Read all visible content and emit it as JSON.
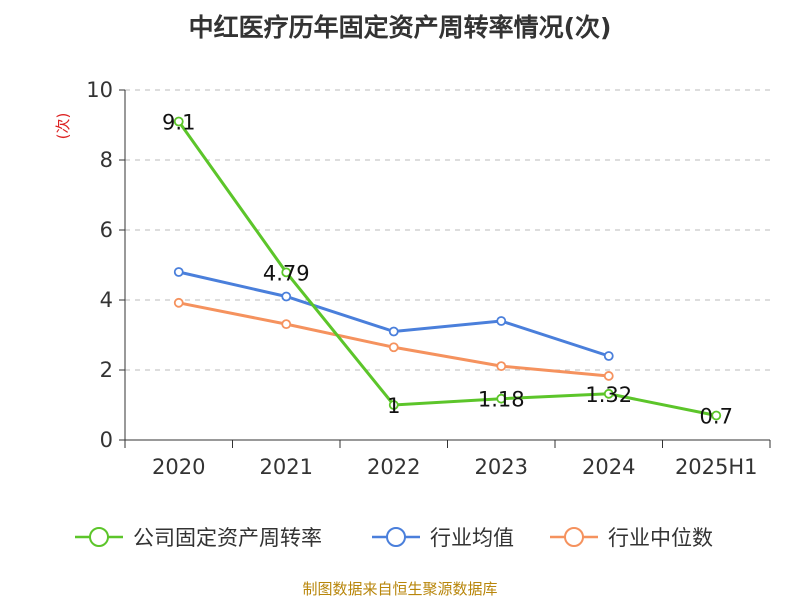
{
  "title": "中红医疗历年固定资产周转率情况(次)",
  "source": "制图数据来自恒生聚源数据库",
  "chart_data": {
    "type": "line",
    "title": "中红医疗历年固定资产周转率情况(次)",
    "ylabel": "(次)",
    "xlabel": "",
    "categories": [
      "2020",
      "2021",
      "2022",
      "2023",
      "2024",
      "2025H1"
    ],
    "ylim": [
      0,
      10
    ],
    "yticks": [
      0,
      2,
      4,
      6,
      8,
      10
    ],
    "grid": true,
    "legend_position": "bottom",
    "series": [
      {
        "name": "公司固定资产周转率",
        "color": "#5cc52a",
        "values": [
          9.1,
          4.79,
          1,
          1.18,
          1.32,
          0.7
        ],
        "labels": [
          "9.1",
          "4.79",
          "1",
          "1.18",
          "1.32",
          "0.7"
        ]
      },
      {
        "name": "行业均值",
        "color": "#4a7fdb",
        "values": [
          4.8,
          4.1,
          3.1,
          3.4,
          2.4,
          null
        ]
      },
      {
        "name": "行业中位数",
        "color": "#f5925e",
        "values": [
          3.92,
          3.31,
          2.65,
          2.11,
          1.83,
          null
        ]
      }
    ]
  }
}
